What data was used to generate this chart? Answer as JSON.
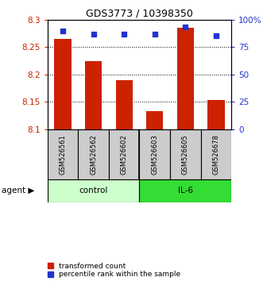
{
  "title": "GDS3773 / 10398350",
  "samples": [
    "GSM526561",
    "GSM526562",
    "GSM526602",
    "GSM526603",
    "GSM526605",
    "GSM526678"
  ],
  "groups": [
    "control",
    "control",
    "control",
    "IL-6",
    "IL-6",
    "IL-6"
  ],
  "red_values": [
    8.265,
    8.225,
    8.19,
    8.133,
    8.285,
    8.153
  ],
  "blue_values": [
    90,
    87,
    87,
    87,
    93,
    85
  ],
  "ymin": 8.1,
  "ymax": 8.3,
  "y_ticks": [
    8.1,
    8.15,
    8.2,
    8.25,
    8.3
  ],
  "y2min": 0,
  "y2max": 100,
  "y2_ticks": [
    0,
    25,
    50,
    75,
    100
  ],
  "y2_ticklabels": [
    "0",
    "25",
    "50",
    "75",
    "100%"
  ],
  "bar_color": "#cc2200",
  "dot_color": "#2233cc",
  "control_color": "#ccffcc",
  "il6_color": "#33dd33",
  "label_color_red": "#cc2200",
  "label_color_blue": "#2233cc",
  "agent_label": "agent",
  "group_labels": [
    "control",
    "IL-6"
  ],
  "legend_red": "transformed count",
  "legend_blue": "percentile rank within the sample",
  "bar_width": 0.55,
  "dot_size": 30
}
